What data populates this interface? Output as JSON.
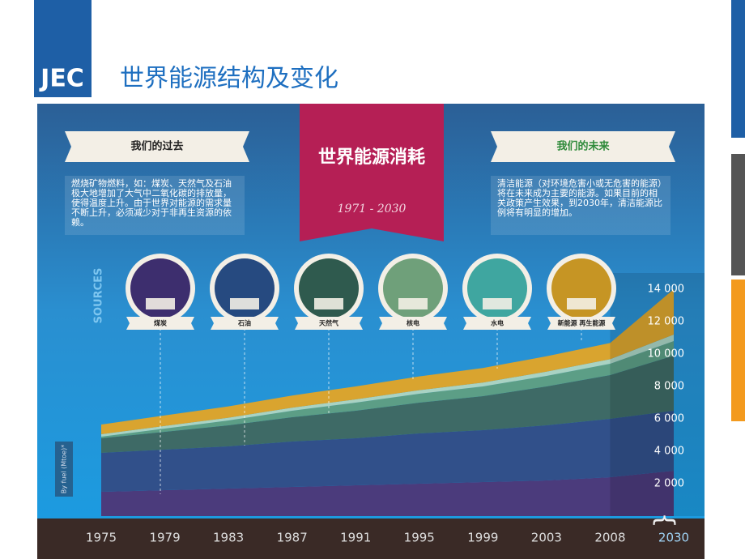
{
  "header": {
    "logo": "JEC",
    "title": "世界能源结构及变化"
  },
  "chart_data": {
    "type": "stacked-area",
    "title": "世界能源消耗",
    "subtitle": "1971 - 2030",
    "y_axis_label": "SOURCES",
    "unit_note": "By fuel (Mtoe)*",
    "past": {
      "heading": "我们的过去",
      "text": "燃烧矿物燃料，如：煤炭、天然气及石油极大地增加了大气中二氧化碳的排放量，使得温度上升。由于世界对能源的需求量不断上升，必须减少对于非再生资源的依赖。"
    },
    "future": {
      "heading": "我们的未来",
      "text": "清洁能源（对环境危害小或无危害的能源）将在未来成为主要的能源。如果目前的相关政策产生效果，到2030年，清洁能源比例将有明显的增加。"
    },
    "categories": [
      "1975",
      "1979",
      "1983",
      "1987",
      "1991",
      "1995",
      "1999",
      "2003",
      "2008",
      "2030"
    ],
    "series": [
      {
        "name": "煤炭",
        "color": "#4b3b7c",
        "values": [
          1500,
          1600,
          1700,
          1800,
          1900,
          2000,
          2100,
          2200,
          2400,
          2800
        ]
      },
      {
        "name": "石油",
        "color": "#31508a",
        "values": [
          2400,
          2500,
          2600,
          2800,
          2900,
          3100,
          3200,
          3400,
          3600,
          3700
        ]
      },
      {
        "name": "天然气",
        "color": "#3e6a66",
        "values": [
          900,
          1100,
          1300,
          1500,
          1700,
          1900,
          2100,
          2400,
          2700,
          3400
        ]
      },
      {
        "name": "核电",
        "color": "#5c9e86",
        "values": [
          100,
          200,
          300,
          400,
          500,
          550,
          600,
          650,
          700,
          900
        ]
      },
      {
        "name": "水电",
        "color": "#a9d3c3",
        "values": [
          150,
          160,
          170,
          190,
          200,
          220,
          240,
          260,
          280,
          400
        ]
      },
      {
        "name": "新能源 再生能源",
        "color": "#d9a42f",
        "values": [
          600,
          650,
          700,
          750,
          800,
          850,
          900,
          950,
          1000,
          2800
        ]
      }
    ],
    "ylim": [
      0,
      14000
    ],
    "yticks": [
      {
        "value": 2000,
        "label": "2 000"
      },
      {
        "value": 4000,
        "label": "4 000"
      },
      {
        "value": 6000,
        "label": "6 000"
      },
      {
        "value": 8000,
        "label": "8 000"
      },
      {
        "value": 10000,
        "label": "10 000"
      },
      {
        "value": 12000,
        "label": "12 000"
      },
      {
        "value": 14000,
        "label": "14 000"
      }
    ]
  }
}
